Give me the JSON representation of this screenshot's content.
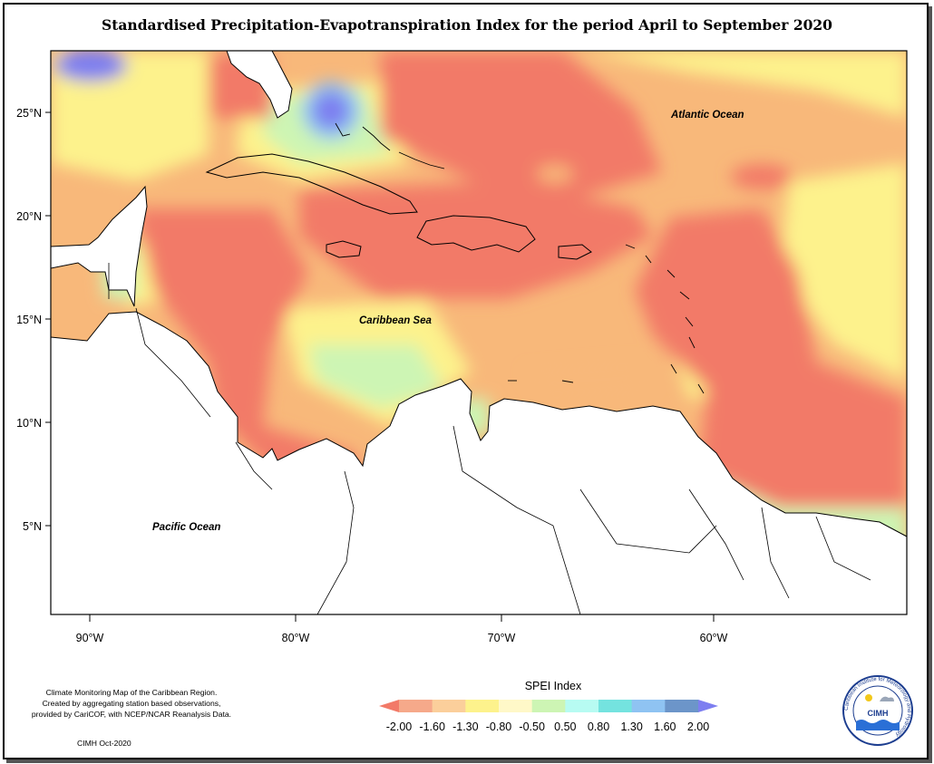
{
  "title": "Standardised Precipitation-Evapotranspiration Index for the period April to September 2020",
  "map": {
    "lon_range": [
      -92,
      -50
    ],
    "lat_range": [
      1,
      28
    ],
    "lat_ticks": [
      "25°N",
      "20°N",
      "15°N",
      "10°N",
      "5°N"
    ],
    "lon_ticks": [
      "90°W",
      "80°W",
      "70°W",
      "60°W"
    ],
    "ocean_labels": [
      "Atlantic Ocean",
      "Caribbean Sea",
      "Pacific Ocean"
    ]
  },
  "legend": {
    "title": "SPEI Index",
    "values": [
      "-2.00",
      "-1.60",
      "-1.30",
      "-0.80",
      "-0.50",
      "0.50",
      "0.80",
      "1.30",
      "1.60",
      "2.00"
    ],
    "colors": [
      "#f27a68",
      "#f6a98a",
      "#fbcf9b",
      "#fdf28c",
      "#fff8c8",
      "#cdf5b4",
      "#b7fbf2",
      "#74e3df",
      "#8fc3f2",
      "#6c95c9",
      "#7d7ef0"
    ]
  },
  "credits": {
    "lines": [
      "Climate Monitoring Map of the Caribbean Region.",
      "Created by aggregating station based observations,",
      "provided by CariCOF, with NCEP/NCAR Reanalysis Data."
    ],
    "date": "CIMH Oct-2020"
  },
  "logo": {
    "name": "CIMH",
    "ring_text": "Caribbean Institute for Meteorology and Hydrology"
  }
}
